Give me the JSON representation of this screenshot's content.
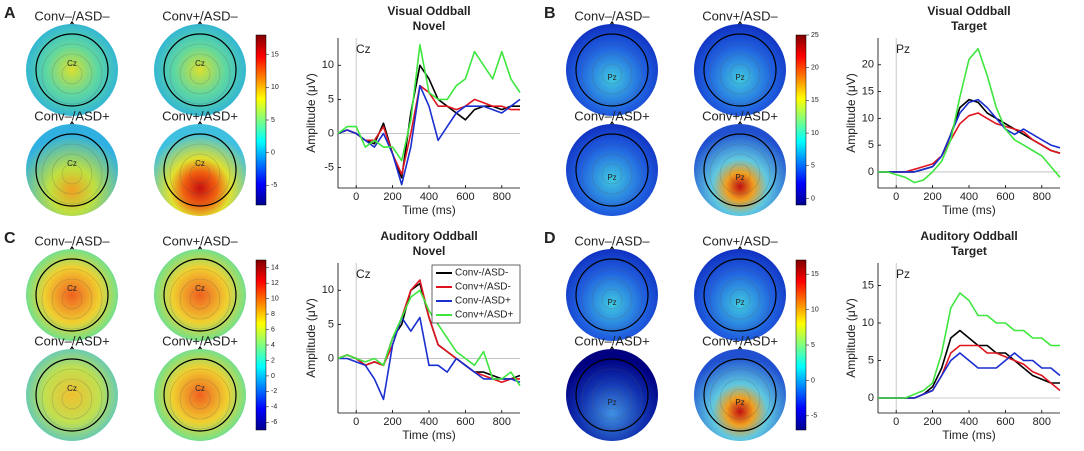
{
  "panels": [
    {
      "letter": "A",
      "maps": [
        {
          "title": "Conv–/ASD–",
          "electrode": "Cz"
        },
        {
          "title": "Conv+/ASD–",
          "electrode": "Cz"
        },
        {
          "title": "Conv–/ASD+",
          "electrode": "Cz"
        },
        {
          "title": "Conv+/ASD+",
          "electrode": "Cz"
        }
      ],
      "colorbar": {
        "lim": [
          -8,
          18
        ],
        "ticks": [
          15,
          10,
          5,
          0,
          -5
        ]
      }
    },
    {
      "letter": "B",
      "maps": [
        {
          "title": "Conv–/ASD–",
          "electrode": "Pz"
        },
        {
          "title": "Conv+/ASD–",
          "electrode": "Pz"
        },
        {
          "title": "Conv–/ASD+",
          "electrode": "Pz"
        },
        {
          "title": "Conv+/ASD+",
          "electrode": "Pz"
        }
      ],
      "colorbar": {
        "lim": [
          -1,
          25
        ],
        "ticks": [
          25,
          20,
          15,
          10,
          5,
          0
        ]
      }
    },
    {
      "letter": "C",
      "maps": [
        {
          "title": "Conv–/ASD–",
          "electrode": "Cz"
        },
        {
          "title": "Conv+/ASD–",
          "electrode": "Cz"
        },
        {
          "title": "Conv–/ASD+",
          "electrode": "Cz"
        },
        {
          "title": "Conv+/ASD+",
          "electrode": "Cz"
        }
      ],
      "colorbar": {
        "lim": [
          -7,
          15
        ],
        "ticks": [
          14,
          12,
          10,
          8,
          6,
          4,
          2,
          0,
          -2,
          -4,
          -6
        ]
      }
    },
    {
      "letter": "D",
      "maps": [
        {
          "title": "Conv–/ASD–",
          "electrode": "Pz"
        },
        {
          "title": "Conv+/ASD–",
          "electrode": "Pz"
        },
        {
          "title": "Conv–/ASD+",
          "electrode": "Pz"
        },
        {
          "title": "Conv+/ASD+",
          "electrode": "Pz"
        }
      ],
      "colorbar": {
        "lim": [
          -7,
          17
        ],
        "ticks": [
          15,
          10,
          5,
          0,
          -5
        ]
      }
    }
  ],
  "chart_data": [
    {
      "type": "line",
      "title": "Visual Oddball",
      "subtitle": "Novel",
      "annotation": "Cz",
      "x_label": "Time (ms)",
      "y_label": "Amplitude (μV)",
      "x": [
        -100,
        -50,
        0,
        50,
        100,
        150,
        200,
        250,
        300,
        350,
        400,
        450,
        500,
        550,
        600,
        650,
        700,
        750,
        800,
        850,
        900
      ],
      "xlim": [
        -100,
        900
      ],
      "xticks": [
        0,
        200,
        400,
        600,
        800
      ],
      "ylim": [
        -8,
        14
      ],
      "yticks": [
        -5,
        0,
        5,
        10
      ],
      "legend": false,
      "series": [
        {
          "name": "Conv-/ASD-",
          "color": "#000000",
          "values": [
            0,
            0.5,
            0,
            -1,
            -1.5,
            1.5,
            -3,
            -6.5,
            3,
            10,
            8,
            5,
            4,
            3,
            2,
            3.5,
            4,
            4,
            3.5,
            4,
            4
          ]
        },
        {
          "name": "Conv+/ASD-",
          "color": "#e0141e",
          "values": [
            0,
            0.5,
            0,
            -1,
            -1,
            1,
            -3,
            -6,
            0,
            7,
            6,
            4,
            4,
            3.5,
            4,
            5,
            4.5,
            4,
            4,
            3.5,
            3.5
          ]
        },
        {
          "name": "Conv-/ASD+",
          "color": "#1a2fd0",
          "values": [
            0,
            0.5,
            0,
            -1,
            -2,
            0,
            -3,
            -7.5,
            -2,
            7,
            4,
            -1,
            1,
            3,
            4,
            4,
            4,
            3.5,
            3,
            4,
            5
          ]
        },
        {
          "name": "Conv+/ASD+",
          "color": "#3ee63e",
          "values": [
            0,
            1,
            1,
            -2,
            -1,
            -2,
            -2,
            -4,
            2,
            13,
            6,
            5,
            5,
            7,
            8,
            12,
            10,
            8,
            12,
            8,
            6
          ]
        }
      ]
    },
    {
      "type": "line",
      "title": "Visual Oddball",
      "subtitle": "Target",
      "annotation": "Pz",
      "x_label": "Time (ms)",
      "y_label": "Amplitude (μV)",
      "x": [
        -100,
        -50,
        0,
        50,
        100,
        150,
        200,
        250,
        300,
        350,
        400,
        450,
        500,
        550,
        600,
        650,
        700,
        750,
        800,
        850,
        900
      ],
      "xlim": [
        -100,
        900
      ],
      "xticks": [
        0,
        200,
        400,
        600,
        800
      ],
      "ylim": [
        -3,
        25
      ],
      "yticks": [
        0,
        5,
        10,
        15,
        20
      ],
      "legend": false,
      "series": [
        {
          "name": "Conv-/ASD-",
          "color": "#000000",
          "values": [
            0,
            0,
            0,
            0,
            0,
            0.5,
            1,
            3,
            7,
            12,
            13.5,
            13,
            11,
            10,
            9,
            8,
            7,
            6,
            5,
            4,
            3.5
          ]
        },
        {
          "name": "Conv+/ASD-",
          "color": "#e0141e",
          "values": [
            0,
            0,
            0,
            0,
            0.5,
            1,
            1.5,
            3,
            6,
            9,
            10.5,
            11,
            10,
            9,
            8.5,
            8,
            7.5,
            6,
            5,
            4,
            3.5
          ]
        },
        {
          "name": "Conv-/ASD+",
          "color": "#1a2fd0",
          "values": [
            0,
            0,
            0,
            0,
            0,
            0.5,
            1,
            3,
            7,
            11,
            13,
            13.5,
            12,
            10,
            8,
            7,
            8,
            7,
            6,
            5,
            4.5
          ]
        },
        {
          "name": "Conv+/ASD+",
          "color": "#3ee63e",
          "values": [
            0,
            0,
            -0.5,
            -1,
            -2,
            -1.5,
            0,
            2,
            6,
            14,
            21,
            23,
            18,
            12,
            8,
            6,
            5,
            4,
            3,
            1,
            -1
          ]
        }
      ]
    },
    {
      "type": "line",
      "title": "Auditory Oddball",
      "subtitle": "Novel",
      "annotation": "Cz",
      "x_label": "Time (ms)",
      "y_label": "Amplitude (μV)",
      "x": [
        -100,
        -50,
        0,
        50,
        100,
        150,
        200,
        250,
        300,
        350,
        400,
        450,
        500,
        550,
        600,
        650,
        700,
        750,
        800,
        850,
        900
      ],
      "xlim": [
        -100,
        900
      ],
      "xticks": [
        0,
        200,
        400,
        600,
        800
      ],
      "ylim": [
        -8,
        14
      ],
      "yticks": [
        0,
        5,
        10
      ],
      "legend": true,
      "series": [
        {
          "name": "Conv-/ASD-",
          "color": "#000000",
          "values": [
            0,
            0.5,
            0,
            -1,
            -0.5,
            -1,
            3,
            5,
            10,
            11,
            6,
            2,
            1,
            0,
            -1,
            -2,
            -2,
            -2.5,
            -3,
            -3,
            -2.5
          ]
        },
        {
          "name": "Conv+/ASD-",
          "color": "#e0141e",
          "values": [
            0,
            0.5,
            0,
            -1,
            -0.5,
            -1,
            2,
            6,
            10,
            11.5,
            6,
            2,
            1,
            0,
            -1,
            -2,
            -2.5,
            -3,
            -3.5,
            -3,
            -3
          ]
        },
        {
          "name": "Conv-/ASD+",
          "color": "#1a2fd0",
          "values": [
            0,
            0,
            -0.5,
            -1,
            -3,
            -6,
            2,
            6,
            4,
            6,
            -1,
            -1,
            -2,
            0,
            -1,
            -2,
            -3,
            -3,
            -3,
            -3,
            -3.5
          ]
        },
        {
          "name": "Conv+/ASD+",
          "color": "#3ee63e",
          "values": [
            0,
            0.5,
            0,
            -0.5,
            0,
            -1,
            3,
            6,
            9,
            10,
            7,
            5,
            3,
            1,
            0,
            -1,
            1,
            -3,
            -3,
            -2,
            -4
          ]
        }
      ]
    },
    {
      "type": "line",
      "title": "Auditory Oddball",
      "subtitle": "Target",
      "annotation": "Pz",
      "x_label": "Time (ms)",
      "y_label": "Amplitude (μV)",
      "x": [
        -100,
        -50,
        0,
        50,
        100,
        150,
        200,
        250,
        300,
        350,
        400,
        450,
        500,
        550,
        600,
        650,
        700,
        750,
        800,
        850,
        900
      ],
      "xlim": [
        -100,
        900
      ],
      "xticks": [
        0,
        200,
        400,
        600,
        800
      ],
      "ylim": [
        -2,
        18
      ],
      "yticks": [
        0,
        5,
        10,
        15
      ],
      "legend": false,
      "series": [
        {
          "name": "Conv-/ASD-",
          "color": "#000000",
          "values": [
            0,
            0,
            0,
            0,
            0,
            0.5,
            1.5,
            4,
            8,
            9,
            8,
            7,
            7,
            6,
            6,
            5,
            4,
            3,
            2.5,
            2,
            2
          ]
        },
        {
          "name": "Conv+/ASD-",
          "color": "#e0141e",
          "values": [
            0,
            0,
            0,
            0,
            0,
            0.5,
            1,
            3,
            6,
            7,
            7,
            7,
            6,
            6,
            5.5,
            5,
            4.5,
            3.5,
            3,
            2,
            1
          ]
        },
        {
          "name": "Conv-/ASD+",
          "color": "#1a2fd0",
          "values": [
            0,
            0,
            0,
            0,
            0,
            0.5,
            1,
            3,
            5,
            6,
            5,
            4,
            4,
            4,
            5,
            6,
            5,
            5,
            4,
            4,
            3
          ]
        },
        {
          "name": "Conv+/ASD+",
          "color": "#3ee63e",
          "values": [
            0,
            0,
            0,
            0,
            0.5,
            1,
            2,
            6,
            12,
            14,
            13,
            11,
            11,
            10,
            10,
            9,
            9,
            8,
            8,
            7,
            7
          ]
        }
      ]
    }
  ]
}
